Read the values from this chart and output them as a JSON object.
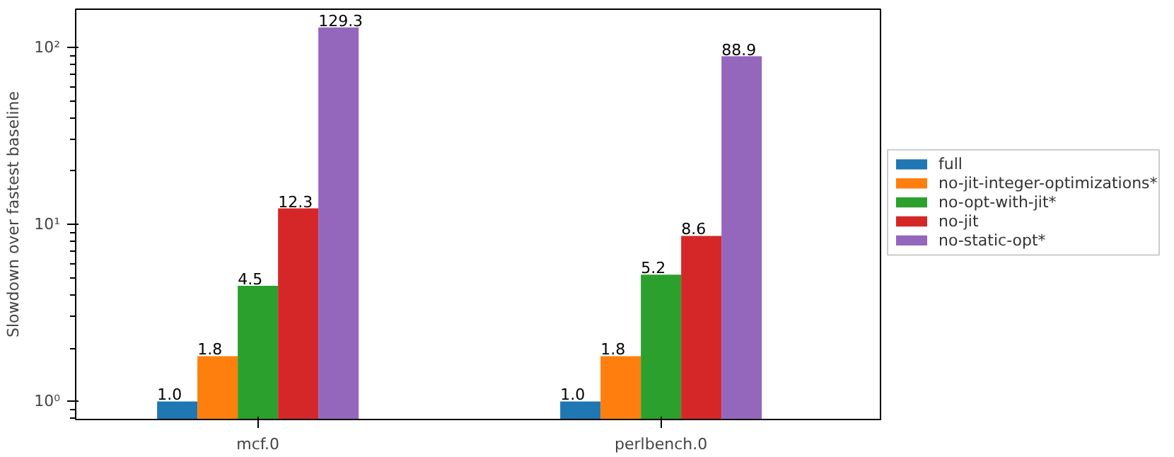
{
  "chart_data": {
    "type": "bar",
    "categories": [
      "mcf.0",
      "perlbench.0"
    ],
    "ylabel": "Slowdown over fastest baseline",
    "log": "y",
    "ylim": [
      0.79,
      164
    ],
    "yticks": [
      {
        "value": 1,
        "label": "10⁰"
      },
      {
        "value": 10,
        "label": "10¹"
      },
      {
        "value": 100,
        "label": "10²"
      }
    ],
    "series": [
      {
        "name": "full",
        "color": "#1f77b4",
        "values": [
          1.0,
          1.0
        ],
        "value_labels": [
          "1.0",
          "1.0"
        ]
      },
      {
        "name": "no-jit-integer-optimizations*",
        "color": "#ff7f0e",
        "values": [
          1.8,
          1.8
        ],
        "value_labels": [
          "1.8",
          "1.8"
        ]
      },
      {
        "name": "no-opt-with-jit*",
        "color": "#2ca02c",
        "values": [
          4.5,
          5.2
        ],
        "value_labels": [
          "4.5",
          "5.2"
        ]
      },
      {
        "name": "no-jit",
        "color": "#d62728",
        "values": [
          12.3,
          8.6
        ],
        "value_labels": [
          "12.3",
          "8.6"
        ]
      },
      {
        "name": "no-static-opt*",
        "color": "#9467bd",
        "values": [
          129.3,
          88.9
        ],
        "value_labels": [
          "129.3",
          "88.9"
        ]
      }
    ],
    "legend": "right",
    "grid": false
  }
}
